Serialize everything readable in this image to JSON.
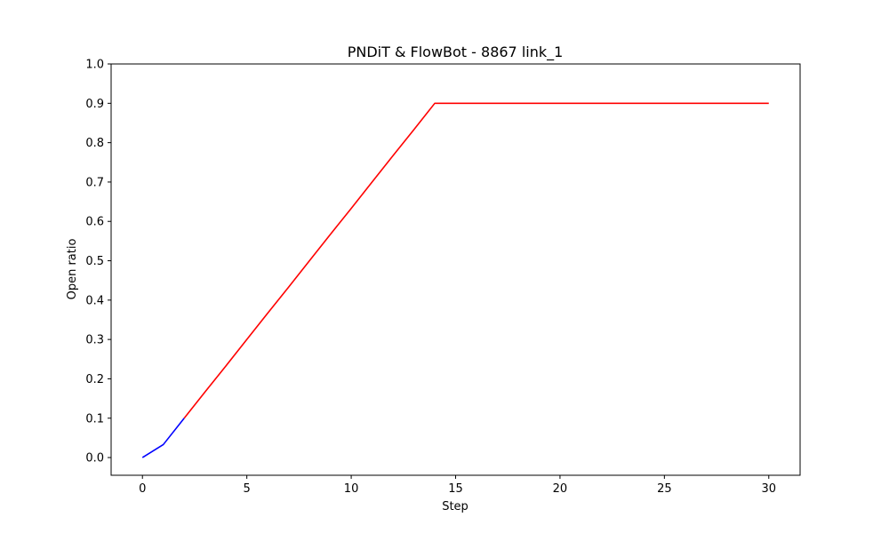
{
  "chart_data": {
    "type": "line",
    "title": "PNDiT & FlowBot - 8867 link_1",
    "xlabel": "Step",
    "ylabel": "Open ratio",
    "xlim": [
      -1.5,
      31.5
    ],
    "ylim": [
      -0.045,
      1.0
    ],
    "xticks": [
      0,
      5,
      10,
      15,
      20,
      25,
      30
    ],
    "yticks": [
      0.0,
      0.1,
      0.2,
      0.3,
      0.4,
      0.5,
      0.6,
      0.7,
      0.8,
      0.9,
      1.0
    ],
    "grid": false,
    "legend": "none",
    "series": [
      {
        "color": "#0000ff",
        "x": [
          0,
          1,
          2
        ],
        "y": [
          0.0,
          0.033,
          0.1
        ]
      },
      {
        "color": "#ff0000",
        "x": [
          2,
          3,
          4,
          5,
          6,
          7,
          8,
          9,
          10,
          11,
          12,
          13,
          14,
          15,
          16,
          17,
          18,
          19,
          20,
          21,
          22,
          23,
          24,
          25,
          26,
          27,
          28,
          29,
          30
        ],
        "y": [
          0.1,
          0.167,
          0.233,
          0.3,
          0.367,
          0.433,
          0.5,
          0.567,
          0.633,
          0.7,
          0.767,
          0.833,
          0.9,
          0.9,
          0.9,
          0.9,
          0.9,
          0.9,
          0.9,
          0.9,
          0.9,
          0.9,
          0.9,
          0.9,
          0.9,
          0.9,
          0.9,
          0.9,
          0.9
        ]
      }
    ]
  }
}
